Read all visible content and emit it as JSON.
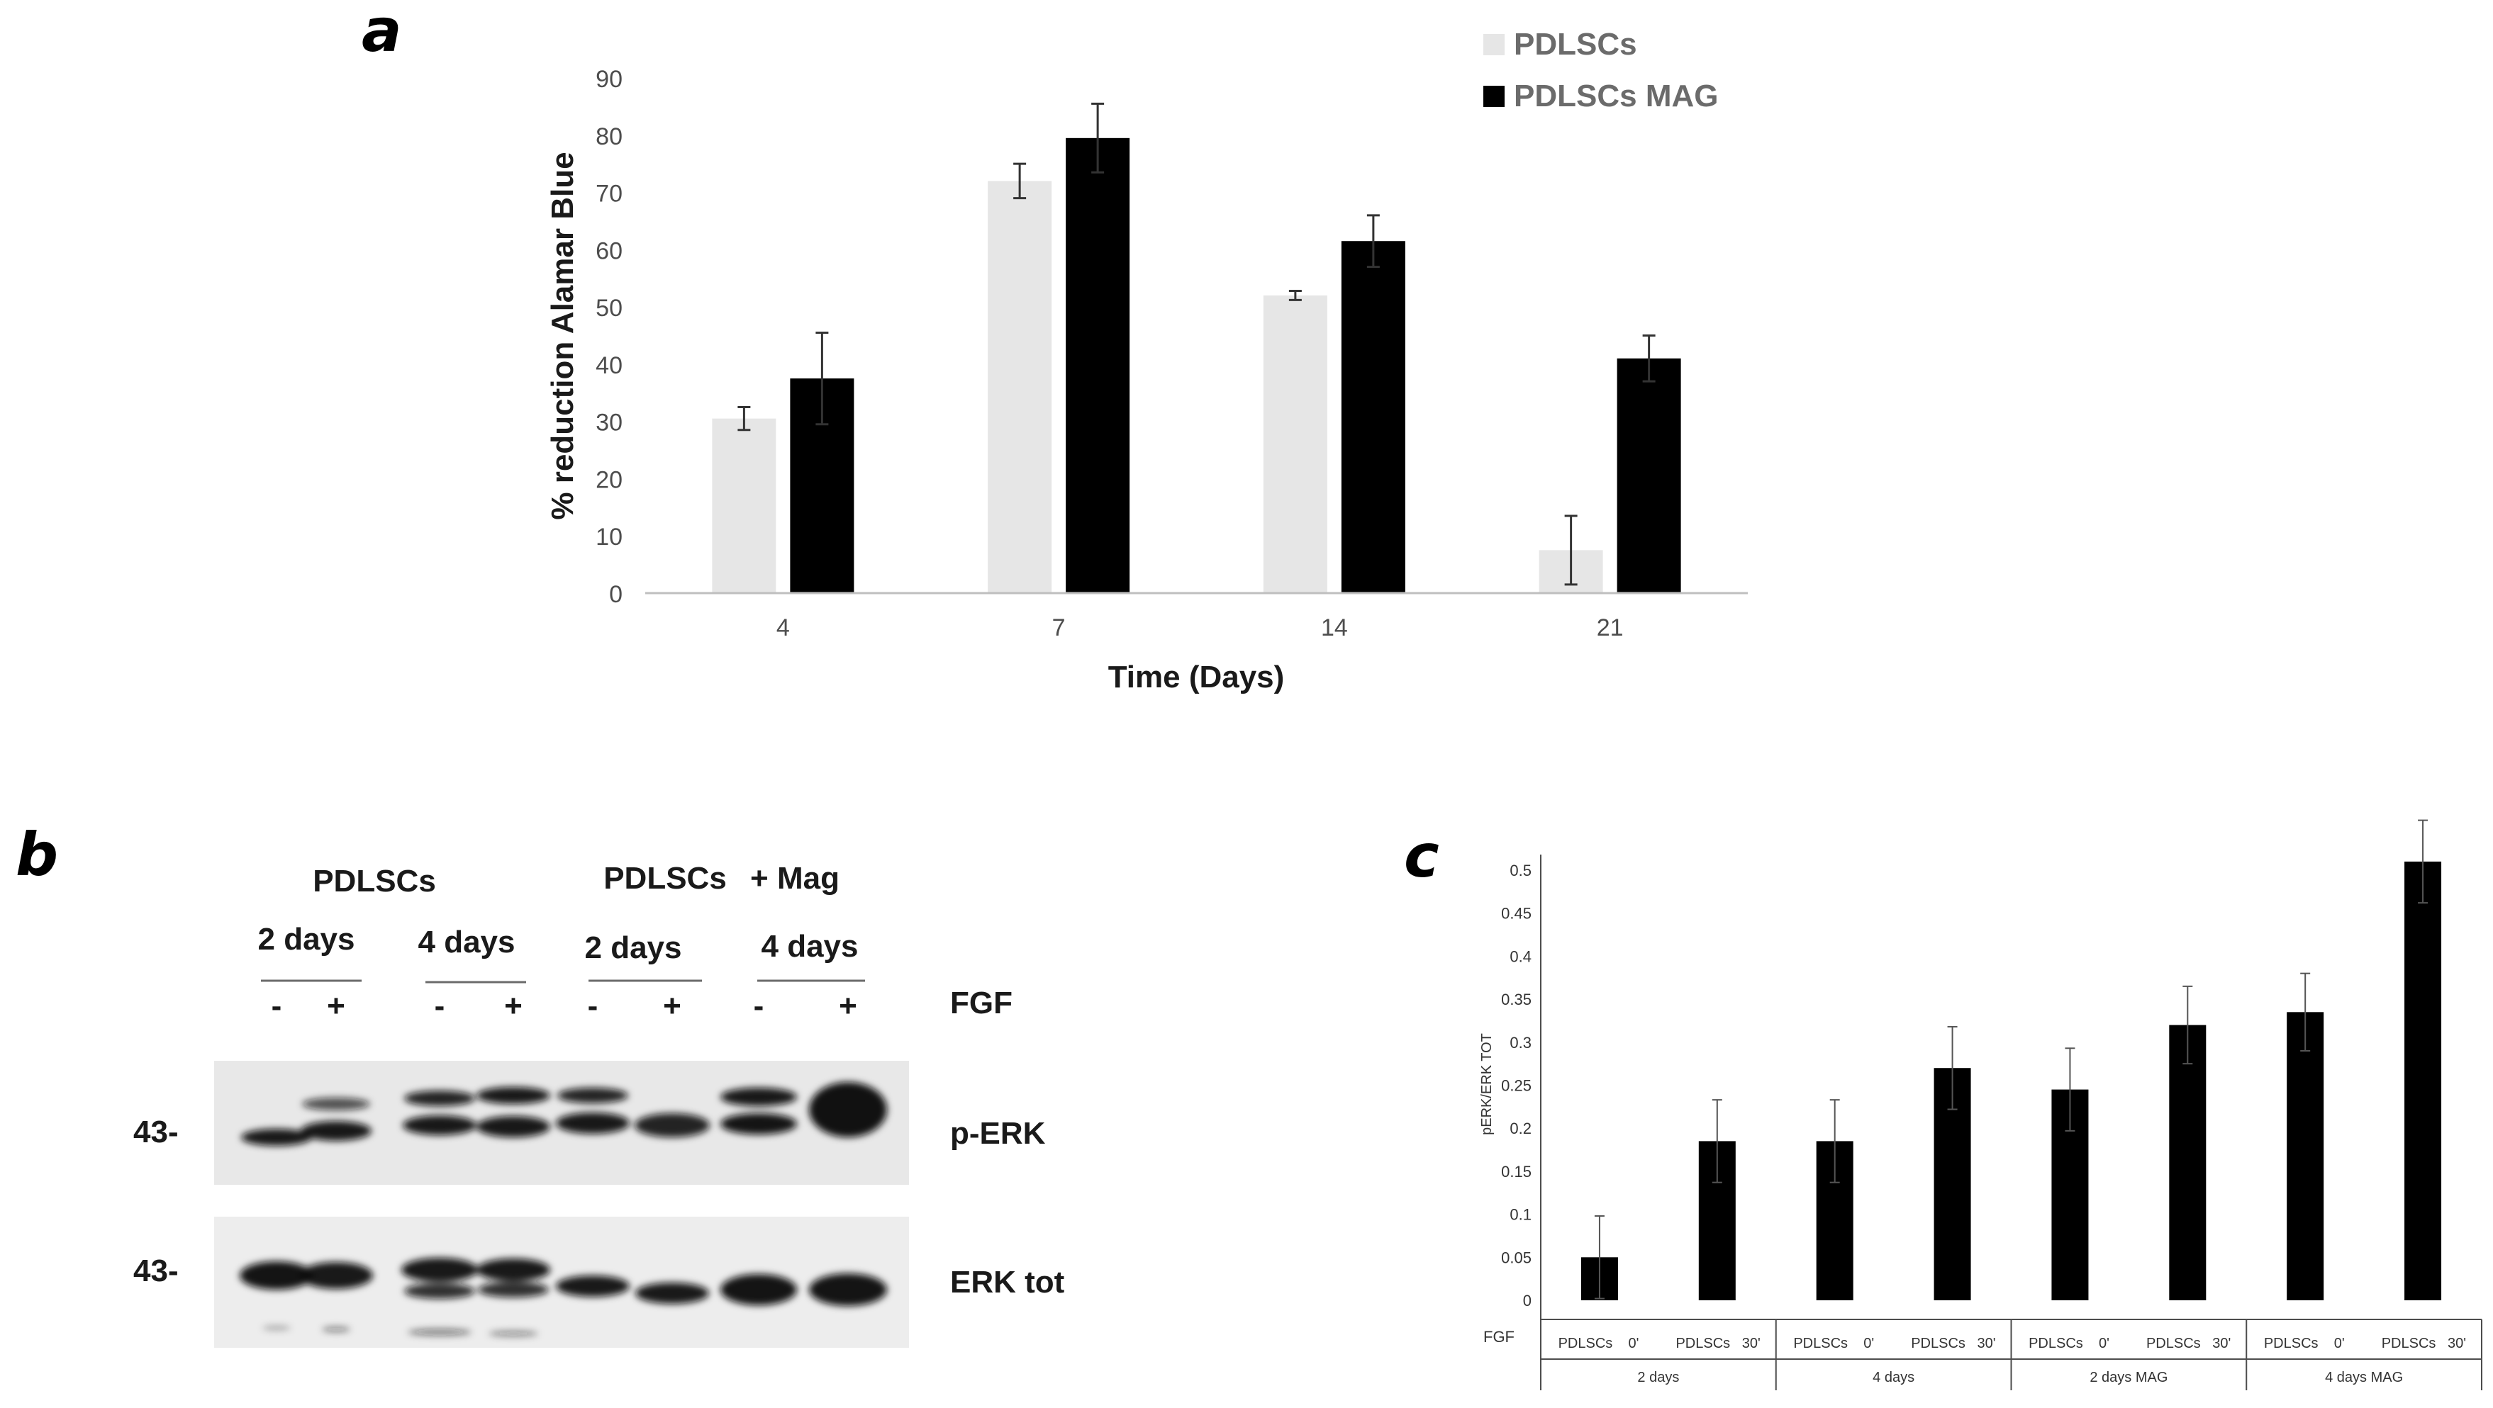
{
  "panels": [
    {
      "letter": "a"
    },
    {
      "letter": "b"
    },
    {
      "letter": "c"
    }
  ],
  "chart_data": [
    {
      "type": "bar",
      "panel": "a",
      "title": "",
      "xlabel": "Time (Days)",
      "ylabel": "% reduction Alamar Blue",
      "categories": [
        "4",
        "7",
        "14",
        "21"
      ],
      "yticks": [
        "0",
        "10",
        "20",
        "30",
        "40",
        "50",
        "60",
        "70",
        "80",
        "90"
      ],
      "ylim": [
        0,
        90
      ],
      "grid": false,
      "legend_position": "top-right",
      "series": [
        {
          "name": "PDLSCs",
          "color": "#e6e6e6",
          "values": [
            30.5,
            72,
            52,
            7.5
          ],
          "errors": [
            2,
            3,
            0.8,
            6
          ]
        },
        {
          "name": "PDLSCs MAG",
          "color": "#000000",
          "values": [
            37.5,
            79.5,
            61.5,
            41
          ],
          "errors": [
            8,
            6,
            4.5,
            4
          ]
        }
      ]
    },
    {
      "type": "bar",
      "panel": "c",
      "title": "",
      "ylabel": "pERK/ERK TOT",
      "xlabel_row_label": "FGF",
      "yticks": [
        "0",
        "0.05",
        "0.1",
        "0.15",
        "0.2",
        "0.25",
        "0.3",
        "0.35",
        "0.4",
        "0.45",
        "0.5"
      ],
      "ylim": [
        0,
        0.5
      ],
      "grid": false,
      "bar_color": "#000000",
      "categories": [
        {
          "label": "PDLSCs",
          "fgf": "0'",
          "group": "2 days"
        },
        {
          "label": "PDLSCs",
          "fgf": "30'",
          "group": "2 days"
        },
        {
          "label": "PDLSCs",
          "fgf": "0'",
          "group": "4 days"
        },
        {
          "label": "PDLSCs",
          "fgf": "30'",
          "group": "4 days"
        },
        {
          "label": "PDLSCs",
          "fgf": "0'",
          "group": "2 days MAG"
        },
        {
          "label": "PDLSCs",
          "fgf": "30'",
          "group": "2 days MAG"
        },
        {
          "label": "PDLSCs",
          "fgf": "0'",
          "group": "4 days MAG"
        },
        {
          "label": "PDLSCs",
          "fgf": "30'",
          "group": "4 days MAG"
        }
      ],
      "groups": [
        "2 days",
        "4 days",
        "2 days MAG",
        "4 days MAG"
      ],
      "values": [
        0.05,
        0.185,
        0.185,
        0.27,
        0.245,
        0.32,
        0.335,
        0.51
      ],
      "errors": [
        0.048,
        0.048,
        0.048,
        0.048,
        0.048,
        0.045,
        0.045,
        0.048
      ]
    }
  ],
  "blot": {
    "headers": [
      "PDLSCs",
      "PDLSCs",
      "+ Mag"
    ],
    "timepoints": [
      "2 days",
      "4 days",
      "2 days",
      "4 days"
    ],
    "fgf_signs": [
      "-",
      "+",
      "-",
      "+",
      "-",
      "+",
      "-",
      "+"
    ],
    "fgf_label": "FGF",
    "rows": [
      {
        "marker": "43-",
        "label": "p-ERK"
      },
      {
        "marker": "43-",
        "label": "ERK tot"
      }
    ]
  }
}
